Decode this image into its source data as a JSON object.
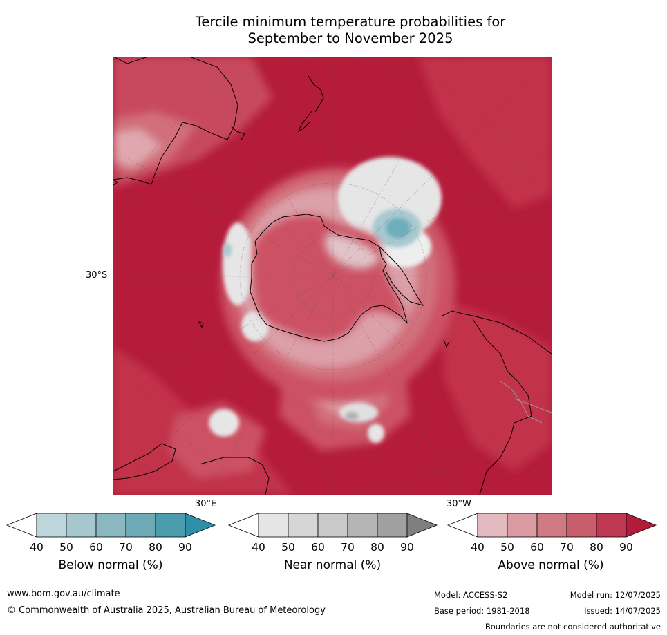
{
  "title_line1": "Tercile minimum temperature probabilities for",
  "title_line2": "September to November 2025",
  "map": {
    "lat_label": "30°S",
    "lon_labels": [
      "30°E",
      "30°W"
    ],
    "colors": {
      "ocean_dark": "#b41c3a",
      "above_80": "#c23249",
      "above_70": "#cc5164",
      "above_60": "#d1707c",
      "above_50": "#dba0a8",
      "above_40": "#e5b9be",
      "near": "#e6e6e6",
      "near_dark": "#b0b0b0",
      "below_50": "#a7c9cf",
      "below_70": "#6eaebb",
      "below_80": "#4a9cad"
    }
  },
  "colorbars": [
    {
      "title": "Below normal (%)",
      "ticks": [
        "40",
        "50",
        "60",
        "70",
        "80",
        "90"
      ],
      "colors": [
        "#ffffff",
        "#bdd6dc",
        "#a6c7cd",
        "#8bb8c0",
        "#6eaab6",
        "#4b9dae",
        "#2f8fa6"
      ]
    },
    {
      "title": "Near normal (%)",
      "ticks": [
        "40",
        "50",
        "60",
        "70",
        "80",
        "90"
      ],
      "colors": [
        "#ffffff",
        "#e5e5e5",
        "#d6d6d6",
        "#c9c9c9",
        "#b5b5b5",
        "#a0a0a0",
        "#7f7f7f"
      ]
    },
    {
      "title": "Above normal (%)",
      "ticks": [
        "40",
        "50",
        "60",
        "70",
        "80",
        "90"
      ],
      "colors": [
        "#ffffff",
        "#e1b9be",
        "#d99aa2",
        "#d07a84",
        "#c85d6c",
        "#bd3850",
        "#b01c3a"
      ]
    }
  ],
  "footer": {
    "website": "www.bom.gov.au/climate",
    "copyright": "© Commonwealth of Australia 2025, Australian Bureau of Meteorology",
    "model": "Model: ACCESS-S2",
    "model_run": "Model run: 12/07/2025",
    "base_period": "Base period: 1981-2018",
    "issued": "Issued: 14/07/2025",
    "disclaimer": "Boundaries are not considered authoritative"
  }
}
